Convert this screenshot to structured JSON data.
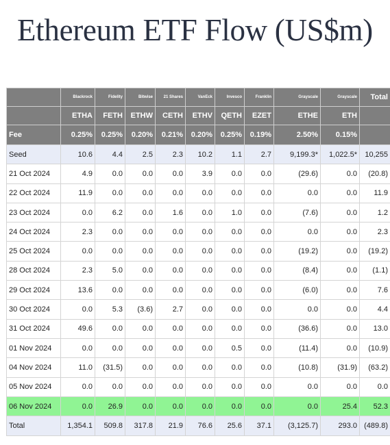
{
  "title": "Ethereum ETF Flow (US$m)",
  "colors": {
    "header_bg": "#7f7f7f",
    "negative": "#e02020",
    "highlight": "#90f494",
    "light_row": "#e8ecf7"
  },
  "columns": [
    {
      "issuer": "Blackrock",
      "ticker": "ETHA",
      "fee": "0.25%"
    },
    {
      "issuer": "Fidelity",
      "ticker": "FETH",
      "fee": "0.25%"
    },
    {
      "issuer": "Bitwise",
      "ticker": "ETHW",
      "fee": "0.20%"
    },
    {
      "issuer": "21 Shares",
      "ticker": "CETH",
      "fee": "0.21%"
    },
    {
      "issuer": "VanEck",
      "ticker": "ETHV",
      "fee": "0.20%"
    },
    {
      "issuer": "Invesco",
      "ticker": "QETH",
      "fee": "0.25%"
    },
    {
      "issuer": "Franklin",
      "ticker": "EZET",
      "fee": "0.19%"
    },
    {
      "issuer": "Grayscale",
      "ticker": "ETHE",
      "fee": "2.50%"
    },
    {
      "issuer": "Grayscale",
      "ticker": "ETH",
      "fee": "0.15%"
    }
  ],
  "total_header": "Total",
  "fee_label": "Fee",
  "rows": [
    {
      "label": "Seed",
      "values": [
        "10.6",
        "4.4",
        "2.5",
        "2.3",
        "10.2",
        "1.1",
        "2.7",
        "9,199.3*",
        "1,022.5*"
      ],
      "total": "10,255"
    },
    {
      "label": "21 Oct 2024",
      "values": [
        "4.9",
        "0.0",
        "0.0",
        "0.0",
        "3.9",
        "0.0",
        "0.0",
        "(29.6)",
        "0.0"
      ],
      "total": "(20.8)"
    },
    {
      "label": "22 Oct 2024",
      "values": [
        "11.9",
        "0.0",
        "0.0",
        "0.0",
        "0.0",
        "0.0",
        "0.0",
        "0.0",
        "0.0"
      ],
      "total": "11.9"
    },
    {
      "label": "23 Oct 2024",
      "values": [
        "0.0",
        "6.2",
        "0.0",
        "1.6",
        "0.0",
        "1.0",
        "0.0",
        "(7.6)",
        "0.0"
      ],
      "total": "1.2"
    },
    {
      "label": "24 Oct 2024",
      "values": [
        "2.3",
        "0.0",
        "0.0",
        "0.0",
        "0.0",
        "0.0",
        "0.0",
        "0.0",
        "0.0"
      ],
      "total": "2.3"
    },
    {
      "label": "25 Oct 2024",
      "values": [
        "0.0",
        "0.0",
        "0.0",
        "0.0",
        "0.0",
        "0.0",
        "0.0",
        "(19.2)",
        "0.0"
      ],
      "total": "(19.2)"
    },
    {
      "label": "28 Oct 2024",
      "values": [
        "2.3",
        "5.0",
        "0.0",
        "0.0",
        "0.0",
        "0.0",
        "0.0",
        "(8.4)",
        "0.0"
      ],
      "total": "(1.1)"
    },
    {
      "label": "29 Oct 2024",
      "values": [
        "13.6",
        "0.0",
        "0.0",
        "0.0",
        "0.0",
        "0.0",
        "0.0",
        "(6.0)",
        "0.0"
      ],
      "total": "7.6"
    },
    {
      "label": "30 Oct 2024",
      "values": [
        "0.0",
        "5.3",
        "(3.6)",
        "2.7",
        "0.0",
        "0.0",
        "0.0",
        "0.0",
        "0.0"
      ],
      "total": "4.4"
    },
    {
      "label": "31 Oct 2024",
      "values": [
        "49.6",
        "0.0",
        "0.0",
        "0.0",
        "0.0",
        "0.0",
        "0.0",
        "(36.6)",
        "0.0"
      ],
      "total": "13.0"
    },
    {
      "label": "01 Nov 2024",
      "values": [
        "0.0",
        "0.0",
        "0.0",
        "0.0",
        "0.0",
        "0.5",
        "0.0",
        "(11.4)",
        "0.0"
      ],
      "total": "(10.9)"
    },
    {
      "label": "04 Nov 2024",
      "values": [
        "11.0",
        "(31.5)",
        "0.0",
        "0.0",
        "0.0",
        "0.0",
        "0.0",
        "(10.8)",
        "(31.9)"
      ],
      "total": "(63.2)"
    },
    {
      "label": "05 Nov 2024",
      "values": [
        "0.0",
        "0.0",
        "0.0",
        "0.0",
        "0.0",
        "0.0",
        "0.0",
        "0.0",
        "0.0"
      ],
      "total": "0.0"
    },
    {
      "label": "06 Nov 2024",
      "values": [
        "0.0",
        "26.9",
        "0.0",
        "0.0",
        "0.0",
        "0.0",
        "0.0",
        "0.0",
        "25.4"
      ],
      "total": "52.3"
    },
    {
      "label": "Total",
      "values": [
        "1,354.1",
        "509.8",
        "317.8",
        "21.9",
        "76.6",
        "25.6",
        "37.1",
        "(3,125.7)",
        "293.0"
      ],
      "total": "(489.8)"
    }
  ]
}
